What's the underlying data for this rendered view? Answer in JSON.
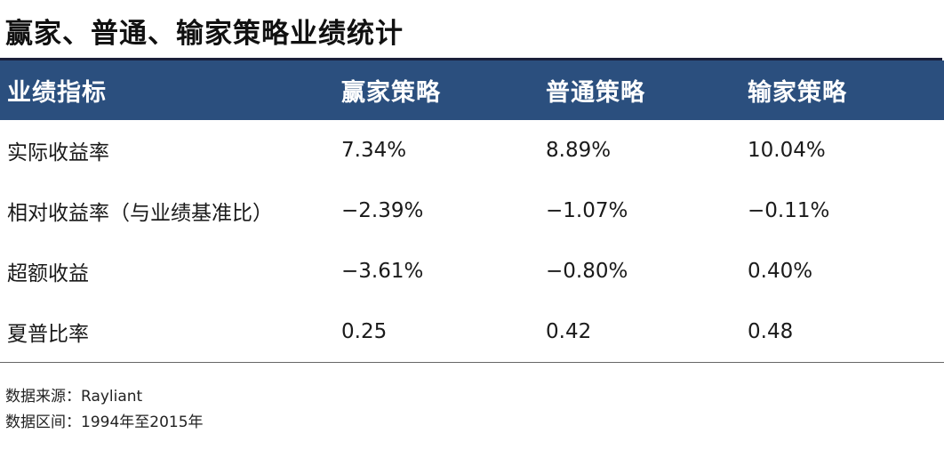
{
  "title": "赢家、普通、输家策略业绩统计",
  "table": {
    "headers": [
      "业绩指标",
      "赢家策略",
      "普通策略",
      "输家策略"
    ],
    "rows": [
      [
        "实际收益率",
        "7.34%",
        "8.89%",
        "10.04%"
      ],
      [
        "相对收益率（与业绩基准比）",
        "−2.39%",
        "−1.07%",
        "−0.11%"
      ],
      [
        "超额收益",
        "−3.61%",
        "−0.80%",
        "0.40%"
      ],
      [
        "夏普比率",
        "0.25",
        "0.42",
        "0.48"
      ]
    ]
  },
  "footnotes": {
    "source": "数据来源：Rayliant",
    "period": "数据区间：1994年至2015年"
  },
  "colors": {
    "header_bg": "#2b4f7e",
    "header_text": "#ffffff",
    "top_rule": "#1a1f3a"
  }
}
